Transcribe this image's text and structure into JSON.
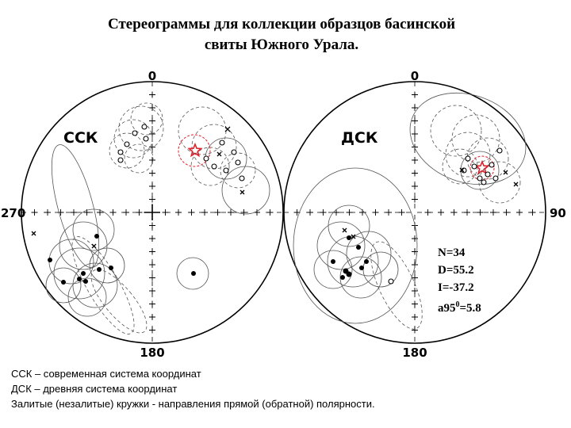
{
  "title": {
    "line1": "Стереограммы для коллекции образцов басинской",
    "line2": "свиты Южного Урала."
  },
  "left_net": {
    "label": "ССК",
    "north": "0",
    "south": "180",
    "west": "270"
  },
  "right_net": {
    "label": "ДСК",
    "north": "0",
    "south": "180",
    "east": "90"
  },
  "stats": {
    "n": "N=34",
    "d": "D=55.2",
    "i": "I=-37.2",
    "a95_prefix": "a95",
    "a95_sup": "0",
    "a95_value": "=5.8"
  },
  "mean_color": "#e0202a",
  "legend": {
    "line1": "ССК – современная система координат",
    "line2": "ДСК – древняя система координат",
    "line3": "Залитые (незалитые) кружки - направления прямой (обратной) полярности."
  }
}
